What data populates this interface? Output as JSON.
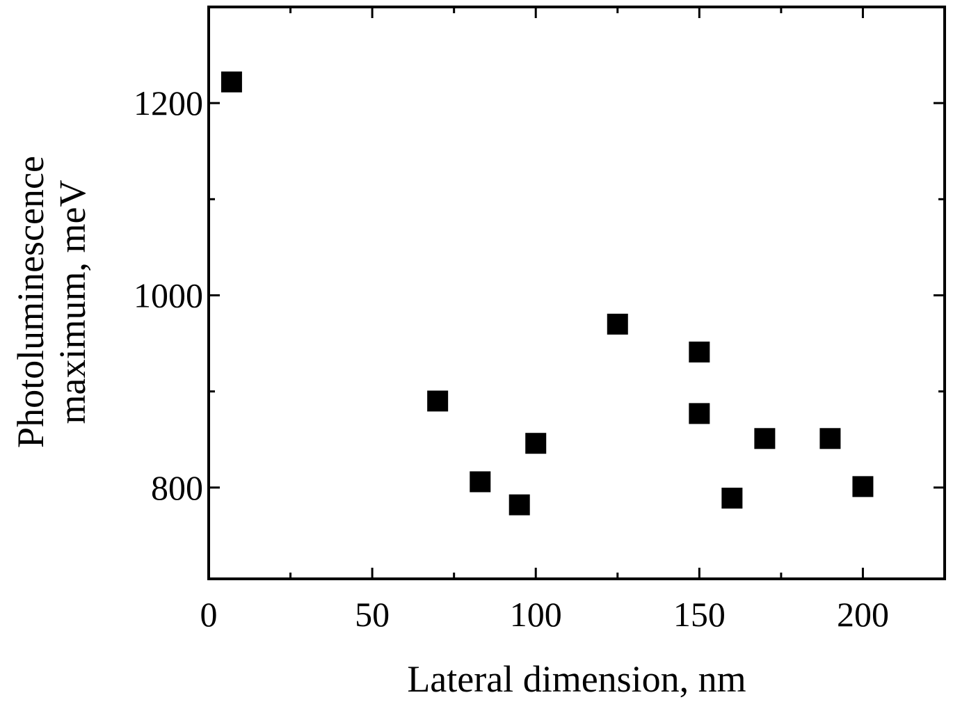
{
  "chart_data": {
    "type": "scatter",
    "title": "",
    "xlabel": "Lateral dimension, nm",
    "ylabel_lines": [
      "Photoluminescence",
      "maximum, meV"
    ],
    "xlim": [
      0,
      225
    ],
    "ylim": [
      705,
      1300
    ],
    "xticks_major": [
      0,
      50,
      100,
      150,
      200
    ],
    "xticks_minor": [
      25,
      75,
      125,
      175
    ],
    "yticks_major": [
      800,
      1000,
      1200
    ],
    "yticks_minor": [
      900,
      1100
    ],
    "marker": "square",
    "marker_color": "#000000",
    "grid": false,
    "legend": "none",
    "series": [
      {
        "points": [
          {
            "x": 7,
            "y": 1222
          },
          {
            "x": 70,
            "y": 890
          },
          {
            "x": 83,
            "y": 806
          },
          {
            "x": 95,
            "y": 782
          },
          {
            "x": 100,
            "y": 846
          },
          {
            "x": 125,
            "y": 970
          },
          {
            "x": 150,
            "y": 941
          },
          {
            "x": 150,
            "y": 877
          },
          {
            "x": 160,
            "y": 789
          },
          {
            "x": 170,
            "y": 851
          },
          {
            "x": 190,
            "y": 851
          },
          {
            "x": 200,
            "y": 801
          }
        ]
      }
    ]
  }
}
